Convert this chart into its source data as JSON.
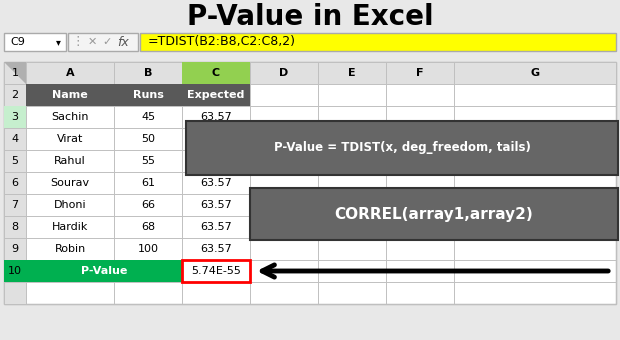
{
  "title": "P-Value in Excel",
  "title_fontsize": 20,
  "title_fontweight": "bold",
  "bg_color": "#e8e8e8",
  "cell_ref": "C9",
  "formula_bar_text": "=TDIST(B2:B8,C2:C8,2)",
  "formula_bg": "#ffff00",
  "header_row": [
    "Name",
    "Runs",
    "Expected"
  ],
  "header_bg": "#595959",
  "header_text_color": "#ffffff",
  "data_rows": [
    [
      "Sachin",
      "45",
      "63.57"
    ],
    [
      "Virat",
      "50",
      ""
    ],
    [
      "Rahul",
      "55",
      ""
    ],
    [
      "Sourav",
      "61",
      "63.57"
    ],
    [
      "Dhoni",
      "66",
      "63.57"
    ],
    [
      "Hardik",
      "68",
      "63.57"
    ],
    [
      "Robin",
      "100",
      "63.57"
    ]
  ],
  "pvalue_label": "P-Value",
  "pvalue_label_bg": "#00b050",
  "pvalue_label_text": "#ffffff",
  "pvalue_value": "5.74E-55",
  "pvalue_value_border": "#ff0000",
  "annotation_box1_text": "P-Value = TDIST(x, deg_freedom, tails)",
  "annotation_box2_text": "CORREL(array1,array2)",
  "annotation_bg": "#666666",
  "annotation_text_color": "#ffffff",
  "arrow_color": "#000000",
  "col_C_header_bg": "#92d050",
  "grid_color": "#c0c0c0",
  "row_header_bg": "#e0e0e0",
  "col_header_bg": "#e0e0e0",
  "row3_left_bg": "#c6efce"
}
